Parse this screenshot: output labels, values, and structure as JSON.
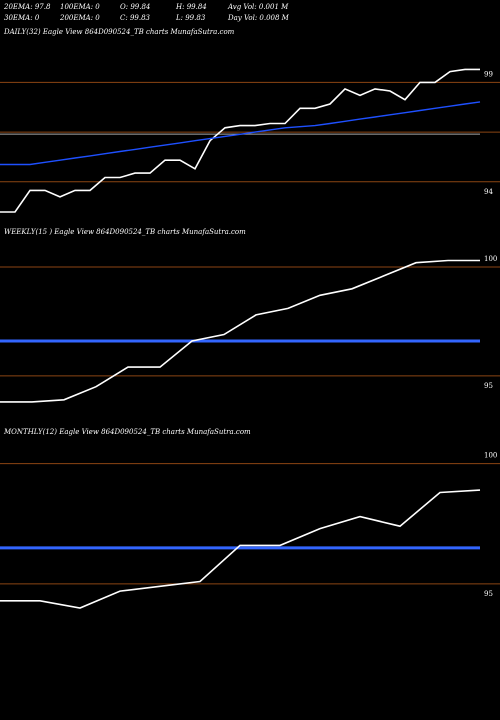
{
  "header": {
    "ema20": "20EMA: 97.8",
    "ema100": "100EMA: 0",
    "open": "O: 99.84",
    "high": "H: 99.84",
    "avg_vol": "Avg Vol: 0.001 M",
    "ema30": "30EMA: 0",
    "ema200": "200EMA: 0",
    "close": "C: 99.83",
    "low": "L: 99.83",
    "day_vol": "Day Vol: 0.008  M"
  },
  "colors": {
    "background": "#000000",
    "price_line": "#ffffff",
    "ema_line": "#1e50ff",
    "level_line": "#8b4513",
    "ref_line": "#aaaaaa",
    "weekly_ref_line": "#3366ff"
  },
  "chart_data": [
    {
      "type": "line",
      "title": "DAILY(32) Eagle  View  864D090524_TB charts MunafaSutra.com",
      "yticks": [
        "99",
        "94"
      ],
      "ylim": [
        92.3,
        100.4
      ],
      "horizontal_levels": [
        98.9,
        96.6,
        94.3
      ],
      "series": [
        {
          "values": [
            92.9,
            92.9,
            93.9,
            93.9,
            93.6,
            93.9,
            93.9,
            94.5,
            94.5,
            94.7,
            94.7,
            95.3,
            95.3,
            94.9,
            96.2,
            96.8,
            96.9,
            96.9,
            97.0,
            97.0,
            97.7,
            97.7,
            97.9,
            98.6,
            98.3,
            98.6,
            98.5,
            98.1,
            98.9,
            98.9,
            99.4,
            99.5,
            99.5
          ]
        },
        {
          "values": [
            95.1,
            95.1,
            95.1,
            95.2,
            95.3,
            95.4,
            95.5,
            95.6,
            95.7,
            95.8,
            95.9,
            96.0,
            96.1,
            96.2,
            96.3,
            96.4,
            96.5,
            96.6,
            96.7,
            96.8,
            96.85,
            96.9,
            97.0,
            97.1,
            97.2,
            97.3,
            97.4,
            97.5,
            97.6,
            97.7,
            97.8,
            97.9,
            98.0
          ]
        }
      ]
    },
    {
      "type": "line",
      "title": "WEEKLY(15                         ) Eagle  View  864D090524_TB charts MunafaSutra.com",
      "yticks": [
        "100",
        "95"
      ],
      "ylim": [
        93.2,
        100.6
      ],
      "horizontal_levels": [
        100.0,
        95.0
      ],
      "reference_line": 96.6,
      "series": [
        {
          "values": [
            93.8,
            93.8,
            93.9,
            94.5,
            95.4,
            95.4,
            96.6,
            96.9,
            97.8,
            98.1,
            98.7,
            99.0,
            99.6,
            100.2,
            100.3,
            100.3
          ]
        }
      ]
    },
    {
      "type": "line",
      "title": "MONTHLY(12) Eagle  View  864D090524_TB charts MunafaSutra.com",
      "yticks": [
        "100",
        "95"
      ],
      "ylim": [
        93.5,
        100.4
      ],
      "horizontal_levels": [
        100.0,
        95.0
      ],
      "reference_line": 96.5,
      "series": [
        {
          "values": [
            94.3,
            94.3,
            94.0,
            94.7,
            94.9,
            95.1,
            96.6,
            96.6,
            97.3,
            97.8,
            97.4,
            98.8,
            98.9
          ]
        }
      ]
    }
  ]
}
